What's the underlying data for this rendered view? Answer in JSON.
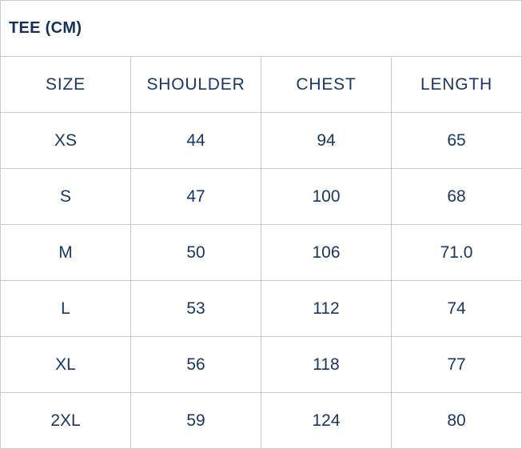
{
  "chart_data": {
    "type": "table",
    "title": "TEE (CM)",
    "columns": [
      "SIZE",
      "SHOULDER",
      "CHEST",
      "LENGTH"
    ],
    "rows": [
      [
        "XS",
        "44",
        "94",
        "65"
      ],
      [
        "S",
        "47",
        "100",
        "68"
      ],
      [
        "M",
        "50",
        "106",
        "71.0"
      ],
      [
        "L",
        "53",
        "112",
        "74"
      ],
      [
        "XL",
        "56",
        "118",
        "77"
      ],
      [
        "2XL",
        "59",
        "124",
        "80"
      ]
    ],
    "units": "cm"
  },
  "colors": {
    "text": "#1b3666",
    "title_text": "#14315e",
    "border": "#cbcbcb",
    "background": "#ffffff"
  }
}
